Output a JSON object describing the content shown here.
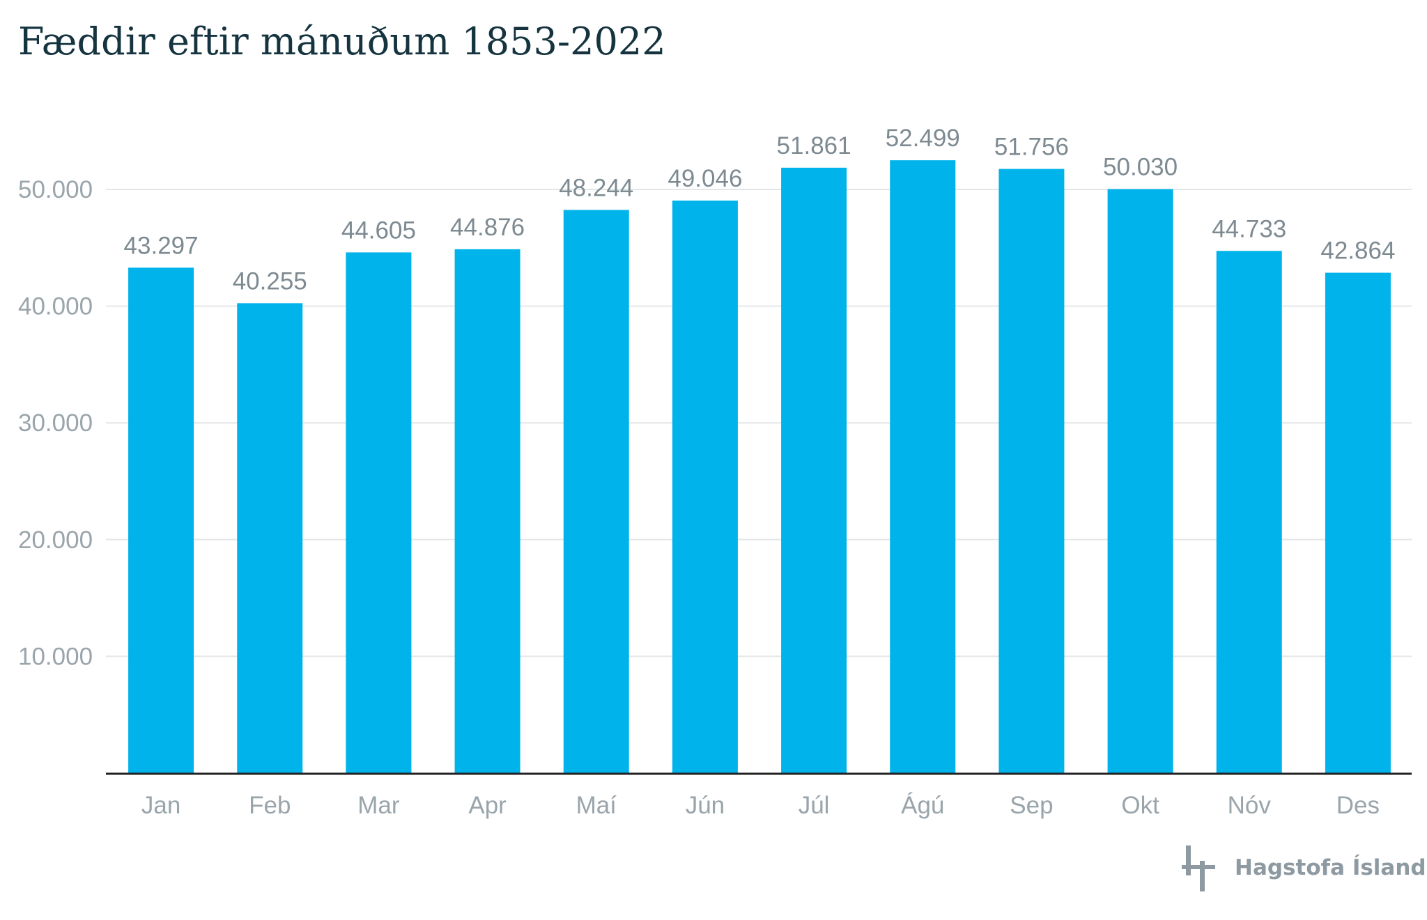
{
  "chart_data": {
    "type": "bar",
    "title": "Fæddir eftir mánuðum 1853-2022",
    "xlabel": "",
    "ylabel": "",
    "categories": [
      "Jan",
      "Feb",
      "Mar",
      "Apr",
      "Maí",
      "Jún",
      "Júl",
      "Ágú",
      "Sep",
      "Okt",
      "Nóv",
      "Des"
    ],
    "values": [
      43297,
      40255,
      44605,
      44876,
      48244,
      49046,
      51861,
      52499,
      51756,
      50030,
      44733,
      42864
    ],
    "value_labels": [
      "43.297",
      "40.255",
      "44.605",
      "44.876",
      "48.244",
      "49.046",
      "51.861",
      "52.499",
      "51.756",
      "50.030",
      "44.733",
      "42.864"
    ],
    "yticks": [
      10000,
      20000,
      30000,
      40000,
      50000
    ],
    "ytick_labels": [
      "10.000",
      "20.000",
      "30.000",
      "40.000",
      "50.000"
    ],
    "ylim": [
      0,
      50000
    ],
    "grid": true,
    "legend": "none"
  },
  "colors": {
    "bar": "#00b3ea",
    "title": "#15343f",
    "tick_text": "#9aa5ab",
    "value_label": "#7d8a91",
    "gridline": "#e3e6e8",
    "baseline": "#222222",
    "brand": "#8e9aa1"
  },
  "brand": {
    "name": "Hagstofa Íslands",
    "icon": "hagstofa-logo-icon"
  }
}
